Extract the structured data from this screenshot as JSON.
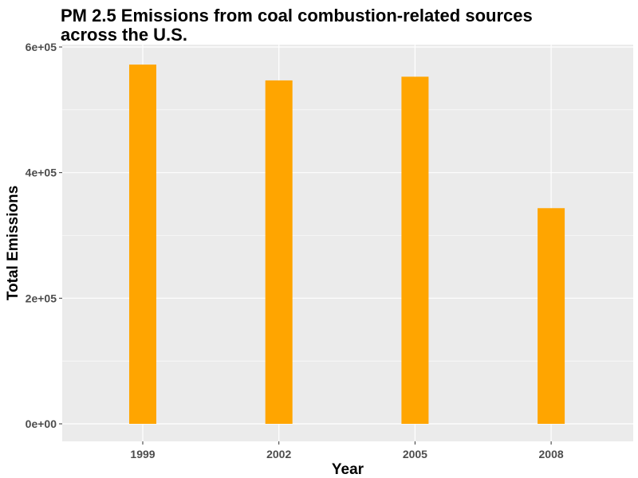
{
  "chart_data": {
    "type": "bar",
    "title_lines": [
      "PM 2.5 Emissions from coal combustion-related sources",
      "across the U.S."
    ],
    "xlabel": "Year",
    "ylabel": "Total Emissions",
    "categories": [
      "1999",
      "2002",
      "2005",
      "2008"
    ],
    "values": [
      572000,
      546800,
      552700,
      343400
    ],
    "ylim": [
      0,
      600000
    ],
    "y_ticks": [
      0,
      200000,
      400000,
      600000
    ],
    "y_tick_labels": [
      "0e+00",
      "2e+05",
      "4e+05",
      "6e+05"
    ],
    "grid": true,
    "legend": "none",
    "colors": {
      "bar": "#FFA500",
      "panel": "#EBEBEB",
      "grid": "#FFFFFF"
    }
  }
}
